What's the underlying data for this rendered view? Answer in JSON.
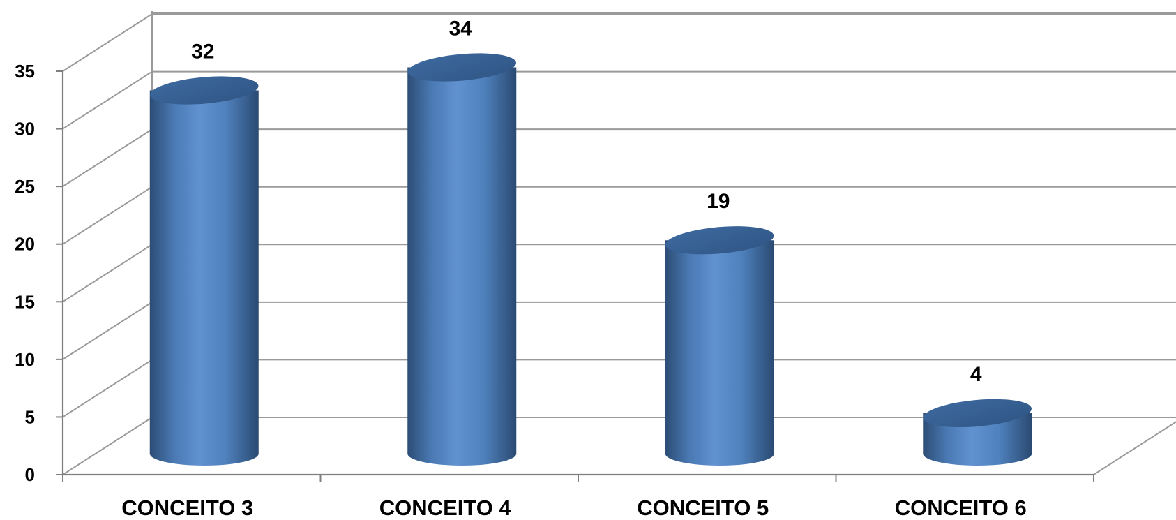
{
  "chart_data": {
    "type": "bar",
    "style": "3d-cylinder",
    "categories": [
      "CONCEITO 3",
      "CONCEITO 4",
      "CONCEITO 5",
      "CONCEITO 6"
    ],
    "values": [
      32,
      34,
      19,
      4
    ],
    "data_labels": [
      "32",
      "34",
      "19",
      "4"
    ],
    "ylim": [
      0,
      35
    ],
    "yticks": [
      "0",
      "5",
      "10",
      "15",
      "20",
      "25",
      "30",
      "35"
    ],
    "grid": true,
    "legend": "none",
    "title": "",
    "xlabel": "",
    "ylabel": "",
    "colors": {
      "bar": "#4f81bd",
      "bar_dark": "#2c4d75",
      "bar_light": "#6f9bd6",
      "top": "#3a6394",
      "grid": "#9a9a9a",
      "axis": "#7f7f7f"
    }
  }
}
